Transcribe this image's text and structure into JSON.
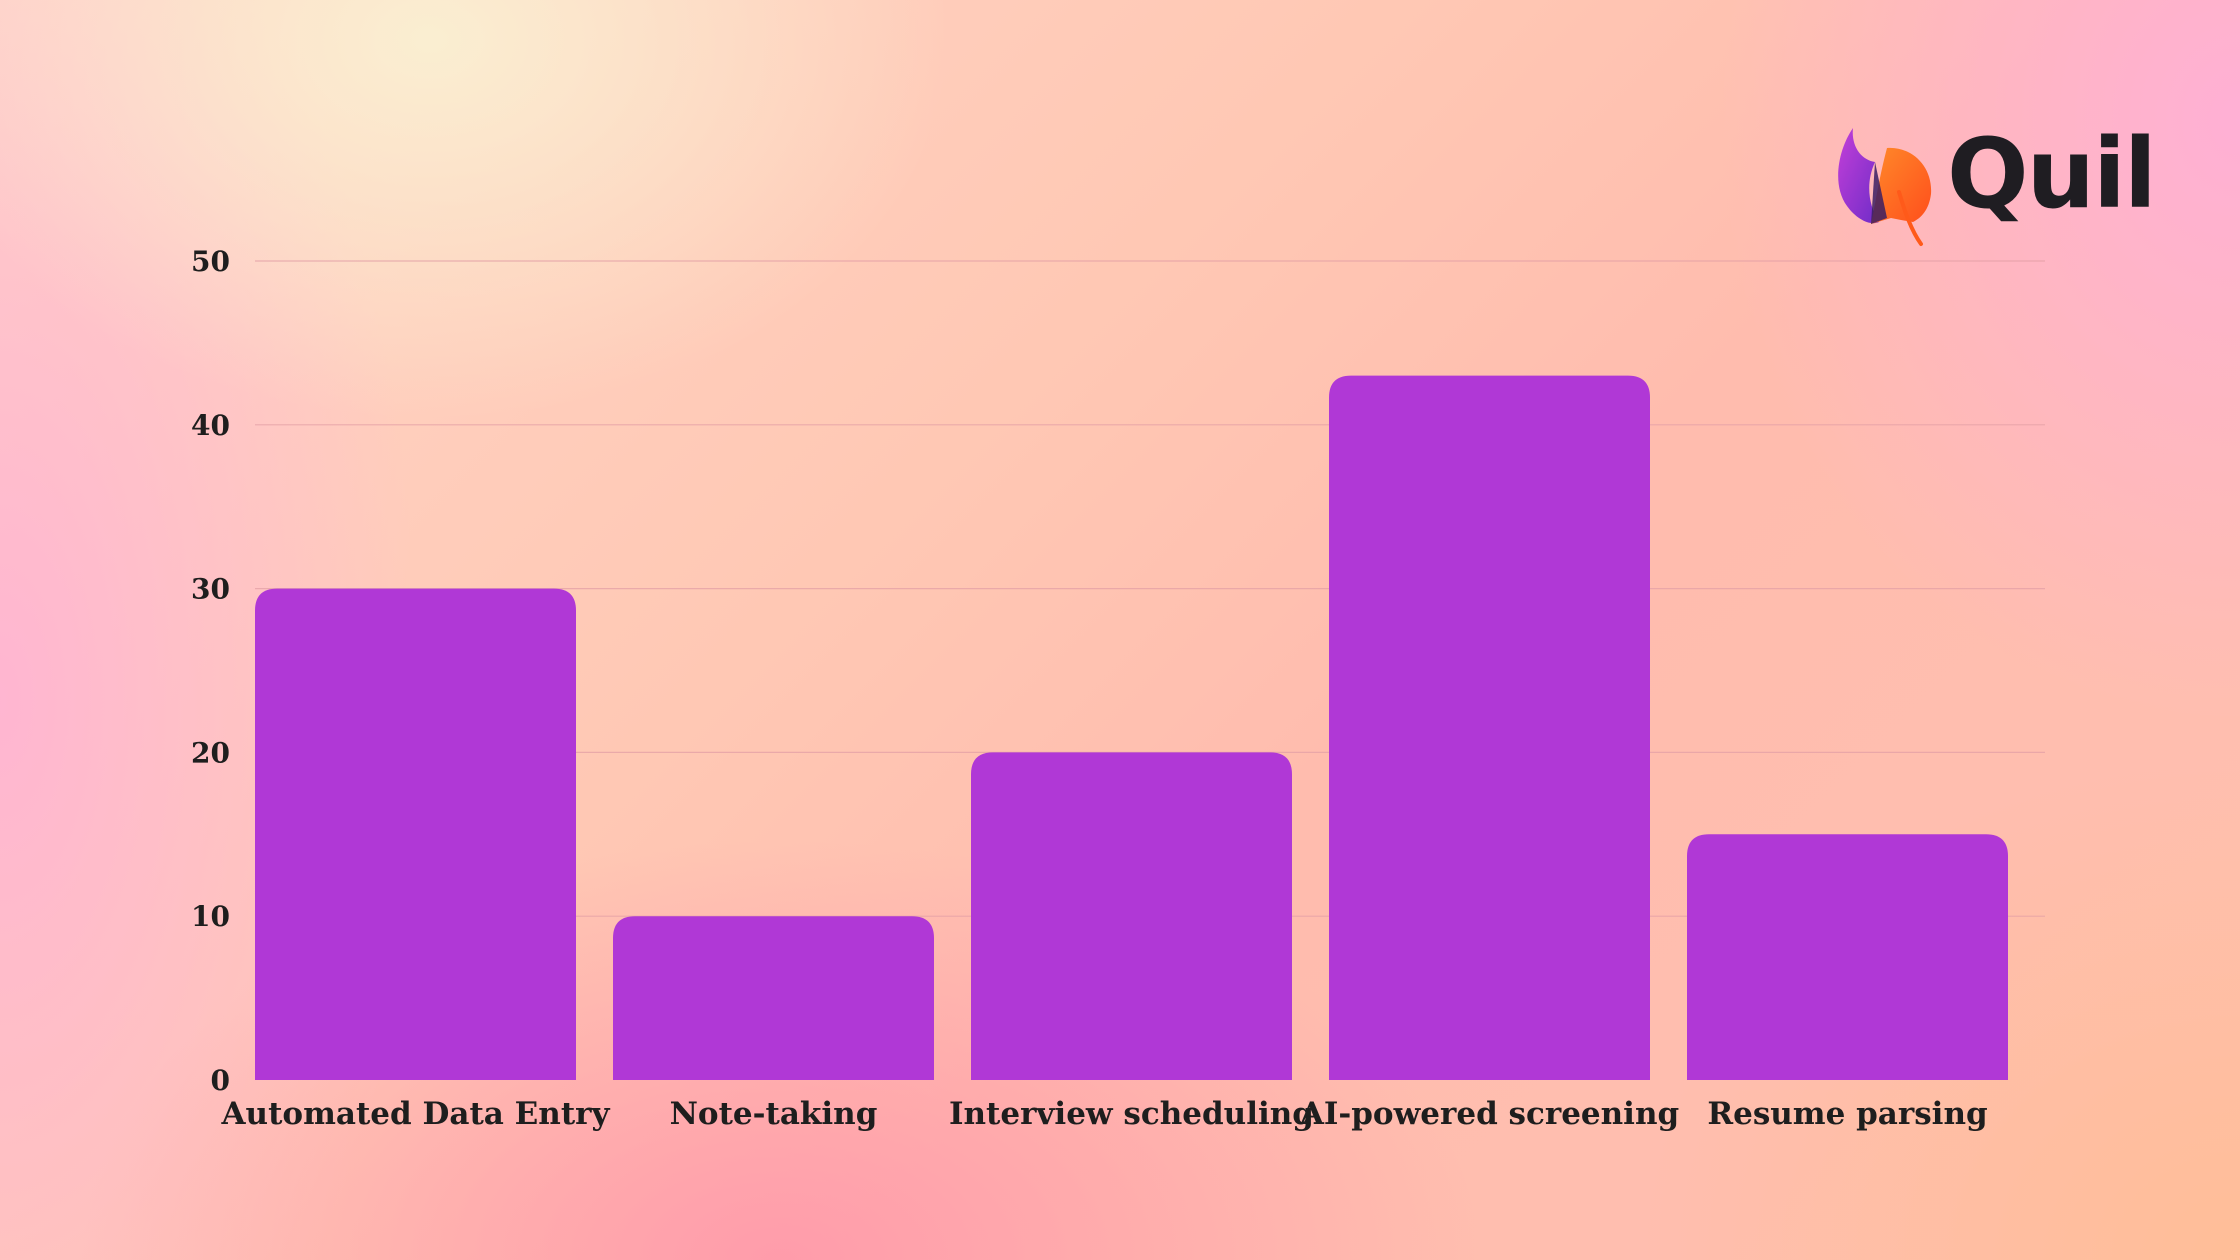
{
  "brand": {
    "name": "Quil",
    "icon": "quill-flame-icon",
    "colors": {
      "purple": "#a72fd0",
      "orange": "#ff6a1a"
    }
  },
  "chart_data": {
    "type": "bar",
    "categories": [
      "Automated Data Entry",
      "Note-taking",
      "Interview scheduling",
      "AI-powered screening",
      "Resume parsing"
    ],
    "values": [
      30,
      10,
      20,
      43,
      15
    ],
    "ylim": [
      0,
      50
    ],
    "yticks": [
      0,
      10,
      20,
      30,
      40,
      50
    ],
    "title": "",
    "xlabel": "",
    "ylabel": "",
    "grid": true,
    "legend": "none",
    "bar_color": "#b038d6"
  }
}
